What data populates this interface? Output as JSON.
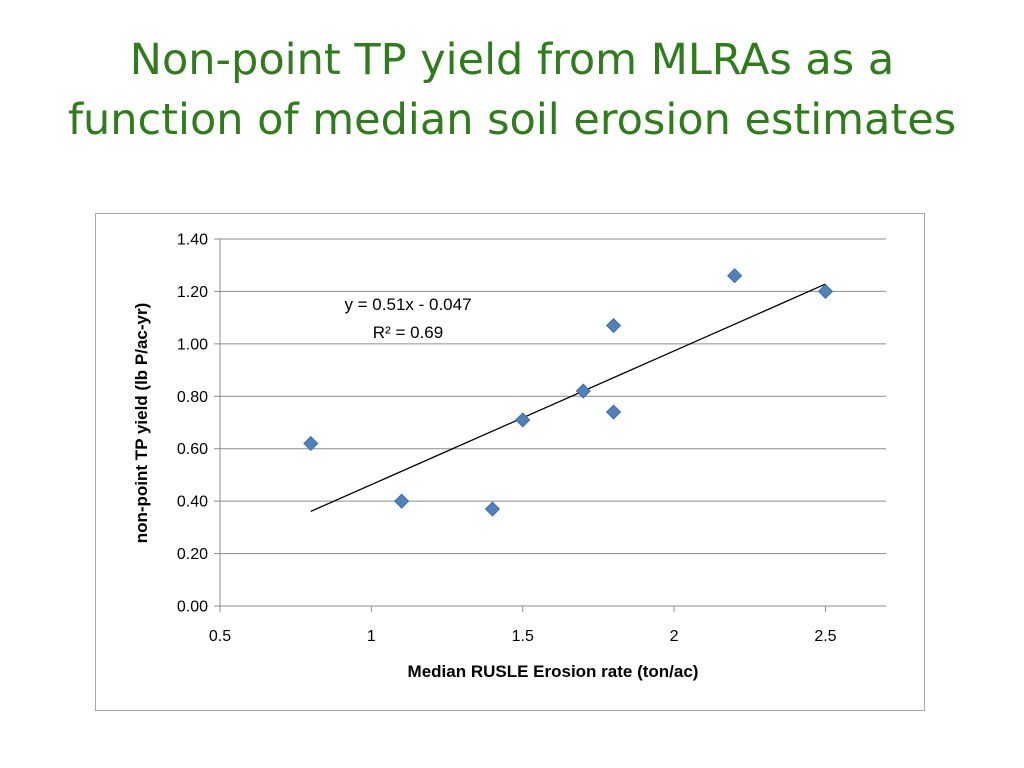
{
  "slide": {
    "title_line1": "Non-point TP yield from MLRAs as a",
    "title_line2": "function of median soil erosion estimates"
  },
  "chart_data": {
    "type": "scatter",
    "title": "",
    "xlabel": "Median RUSLE Erosion rate (ton/ac)",
    "ylabel": "non-point TP yield (lb P/ac-yr)",
    "xlim": [
      0.5,
      2.7
    ],
    "ylim": [
      0,
      1.4
    ],
    "xticks": [
      "0.5",
      "1",
      "1.5",
      "2",
      "2.5"
    ],
    "yticks": [
      "0.00",
      "0.20",
      "0.40",
      "0.60",
      "0.80",
      "1.00",
      "1.20",
      "1.40"
    ],
    "grid": true,
    "legend": "none",
    "marker_color": "#4f81bd",
    "points": [
      {
        "x": 0.8,
        "y": 0.62
      },
      {
        "x": 1.1,
        "y": 0.4
      },
      {
        "x": 1.4,
        "y": 0.37
      },
      {
        "x": 1.5,
        "y": 0.71
      },
      {
        "x": 1.7,
        "y": 0.82
      },
      {
        "x": 1.8,
        "y": 1.07
      },
      {
        "x": 1.8,
        "y": 0.74
      },
      {
        "x": 2.2,
        "y": 1.26
      },
      {
        "x": 2.5,
        "y": 1.2
      }
    ],
    "trendline": {
      "slope": 0.51,
      "intercept": -0.047,
      "x_range": [
        0.8,
        2.5
      ],
      "equation": "y = 0.51x - 0.047",
      "r_squared": "R² = 0.69"
    }
  }
}
